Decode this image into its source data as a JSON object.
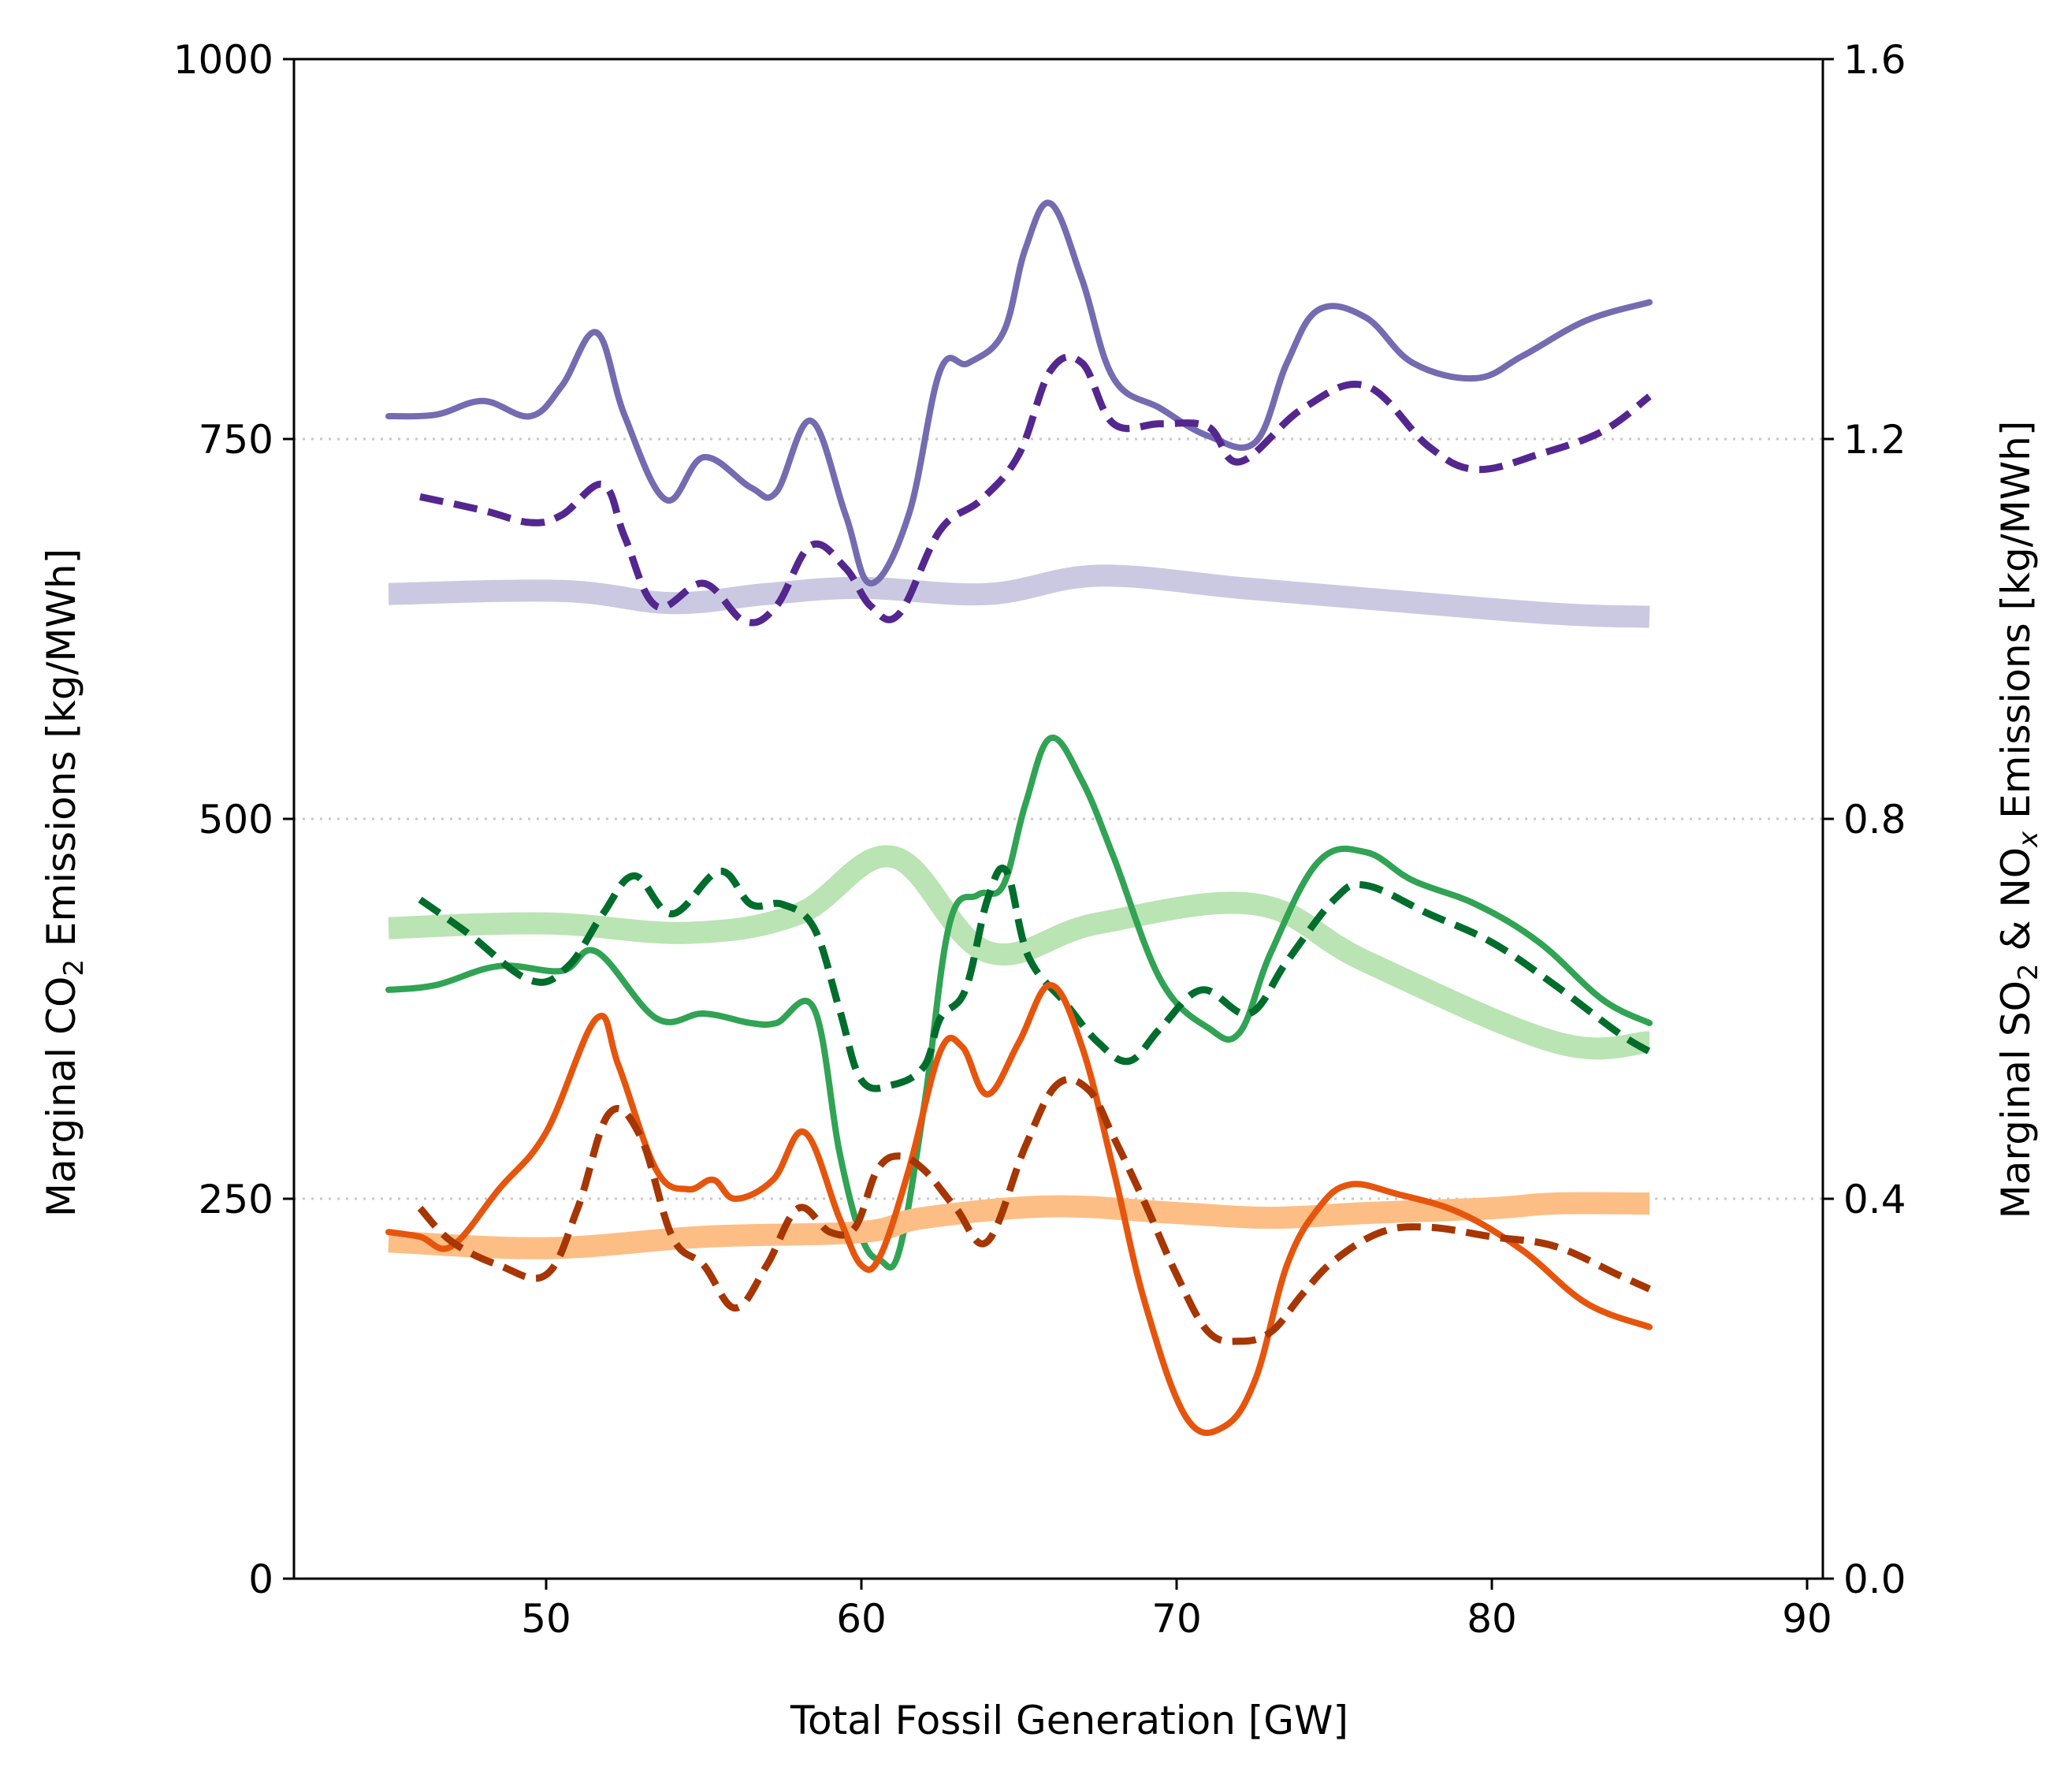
{
  "chart_data": {
    "type": "line",
    "xlabel": "Total Fossil Generation [GW]",
    "ylabel_left": {
      "pre": "Marginal CO",
      "sub": "2",
      "post": " Emissions [kg/MWh]"
    },
    "ylabel_right": {
      "pre": "Marginal SO",
      "sub1": "2",
      "mid": " & NO",
      "sub2": "x",
      "post": " Emissions [kg/MWh]"
    },
    "xlim": [
      42,
      90.5
    ],
    "ylim_left": [
      0,
      1000
    ],
    "ylim_right": [
      0,
      1.6
    ],
    "xticks": [
      "50",
      "60",
      "70",
      "80",
      "90"
    ],
    "yticks_left": [
      "0",
      "250",
      "500",
      "750",
      "1000"
    ],
    "yticks_right": [
      "0.0",
      "0.4",
      "0.8",
      "1.2",
      "1.6"
    ],
    "grid": "horizontal dotted at 250, 500, 750",
    "series": [
      {
        "axis": "left",
        "style": "thick",
        "color": "#cbc9e2",
        "x": [
          45,
          50.5,
          54,
          57,
          60,
          64,
          67.5,
          72,
          76,
          82,
          85
        ],
        "y": [
          648,
          650,
          642,
          648,
          652,
          648,
          660,
          652,
          645,
          635,
          633
        ]
      },
      {
        "axis": "left",
        "style": "solid",
        "color": "#756bb1",
        "x": [
          45,
          46.5,
          48,
          49.5,
          50.5,
          51.6,
          52.5,
          53.8,
          55,
          56.5,
          57.3,
          58.4,
          59.5,
          60.3,
          61.5,
          62.5,
          63.4,
          64.5,
          65.2,
          66,
          67,
          68,
          69.5,
          71,
          72.5,
          73.5,
          74.5,
          76,
          77.5,
          79.5,
          81,
          83,
          85
        ],
        "y": [
          765,
          766,
          775,
          765,
          785,
          820,
          765,
          710,
          738,
          718,
          715,
          762,
          700,
          655,
          700,
          795,
          800,
          820,
          875,
          905,
          855,
          790,
          770,
          752,
          748,
          800,
          835,
          830,
          800,
          790,
          805,
          828,
          840
        ]
      },
      {
        "axis": "left",
        "style": "dashed",
        "color": "#54278f",
        "x": [
          46,
          48,
          49.5,
          50.5,
          51.8,
          52.5,
          53.5,
          55,
          56.3,
          57.3,
          58.4,
          59.5,
          60.3,
          61.2,
          62.5,
          63.8,
          65,
          66,
          67,
          68,
          69.5,
          71,
          72,
          74,
          76,
          78,
          79.5,
          81.5,
          83.5,
          85
        ],
        "y": [
          712,
          703,
          695,
          700,
          720,
          685,
          640,
          655,
          630,
          640,
          680,
          665,
          640,
          635,
          690,
          710,
          740,
          795,
          800,
          760,
          760,
          758,
          735,
          770,
          785,
          745,
          730,
          740,
          755,
          778
        ]
      },
      {
        "axis": "right",
        "style": "thick",
        "color": "#bae4b3",
        "x": [
          45,
          50,
          54.5,
          58,
          61,
          64,
          67.5,
          72.5,
          76,
          82,
          85
        ],
        "y": [
          0.685,
          0.69,
          0.68,
          0.7,
          0.76,
          0.66,
          0.69,
          0.71,
          0.65,
          0.565,
          0.565
        ]
      },
      {
        "axis": "right",
        "style": "solid",
        "color": "#31a354",
        "x": [
          45,
          46.5,
          48.5,
          50.5,
          51.6,
          53.5,
          55,
          56.5,
          57.3,
          58.5,
          59.3,
          60,
          60.6,
          61.2,
          62,
          62.8,
          63.7,
          64.5,
          65.2,
          66,
          67,
          68,
          69.5,
          71,
          72,
          73,
          74.5,
          76,
          77.5,
          79.5,
          81.5,
          83.5,
          85
        ],
        "y": [
          0.62,
          0.625,
          0.645,
          0.64,
          0.66,
          0.59,
          0.595,
          0.585,
          0.585,
          0.6,
          0.45,
          0.36,
          0.335,
          0.345,
          0.5,
          0.69,
          0.72,
          0.73,
          0.815,
          0.885,
          0.84,
          0.76,
          0.63,
          0.58,
          0.575,
          0.66,
          0.755,
          0.765,
          0.735,
          0.71,
          0.67,
          0.61,
          0.585
        ]
      },
      {
        "axis": "right",
        "style": "dashed",
        "color": "#006d2c",
        "x": [
          46,
          47.5,
          49.5,
          50.7,
          51.8,
          52.8,
          54,
          55.5,
          56.5,
          57.5,
          58.5,
          59.3,
          60,
          61,
          62,
          62.5,
          63.3,
          64,
          64.6,
          65.3,
          66.5,
          67.5,
          68.5,
          69.5,
          70.8,
          72.3,
          73.5,
          75,
          76,
          78,
          80,
          82,
          84,
          85
        ],
        "y": [
          0.715,
          0.68,
          0.63,
          0.645,
          0.7,
          0.74,
          0.7,
          0.745,
          0.71,
          0.71,
          0.685,
          0.6,
          0.525,
          0.52,
          0.54,
          0.59,
          0.62,
          0.715,
          0.745,
          0.655,
          0.605,
          0.565,
          0.545,
          0.58,
          0.62,
          0.595,
          0.65,
          0.715,
          0.73,
          0.7,
          0.67,
          0.625,
          0.575,
          0.555
        ]
      },
      {
        "axis": "right",
        "style": "thick",
        "color": "#fdbe85",
        "x": [
          45,
          50,
          55,
          60,
          62,
          66,
          70,
          73,
          76,
          80,
          82,
          85
        ],
        "y": [
          0.355,
          0.348,
          0.36,
          0.365,
          0.38,
          0.392,
          0.385,
          0.38,
          0.385,
          0.39,
          0.395,
          0.395
        ]
      },
      {
        "axis": "right",
        "style": "solid",
        "color": "#e6550d",
        "x": [
          45,
          46,
          47,
          48.5,
          50,
          51.6,
          52.3,
          53.5,
          54.5,
          55.3,
          56,
          57.2,
          58.2,
          59.3,
          60,
          60.6,
          61.5,
          62.5,
          63.2,
          64,
          65,
          66,
          67,
          68,
          69,
          70.3,
          71.5,
          72.5,
          73.5,
          74.5,
          75.5,
          77,
          79,
          81,
          83,
          85
        ],
        "y": [
          0.365,
          0.36,
          0.35,
          0.41,
          0.47,
          0.59,
          0.54,
          0.43,
          0.41,
          0.42,
          0.4,
          0.42,
          0.47,
          0.38,
          0.33,
          0.34,
          0.43,
          0.555,
          0.56,
          0.51,
          0.565,
          0.625,
          0.56,
          0.43,
          0.29,
          0.17,
          0.16,
          0.21,
          0.33,
          0.39,
          0.415,
          0.405,
          0.385,
          0.345,
          0.29,
          0.265
        ]
      },
      {
        "axis": "right",
        "style": "dashed",
        "color": "#a63603",
        "x": [
          46,
          47,
          48.5,
          50,
          51,
          52,
          53,
          54,
          55,
          56,
          57,
          58,
          59,
          59.8,
          60.5,
          61.2,
          62,
          63,
          64,
          65.2,
          66.2,
          67.2,
          68,
          69,
          70,
          71,
          72,
          73,
          74,
          75,
          76.5,
          78,
          80,
          82,
          84,
          85
        ],
        "y": [
          0.39,
          0.355,
          0.33,
          0.32,
          0.39,
          0.49,
          0.465,
          0.36,
          0.33,
          0.285,
          0.33,
          0.39,
          0.365,
          0.37,
          0.43,
          0.445,
          0.43,
          0.39,
          0.355,
          0.455,
          0.52,
          0.515,
          0.465,
          0.395,
          0.32,
          0.26,
          0.25,
          0.26,
          0.3,
          0.335,
          0.365,
          0.37,
          0.36,
          0.35,
          0.32,
          0.305
        ]
      }
    ]
  }
}
